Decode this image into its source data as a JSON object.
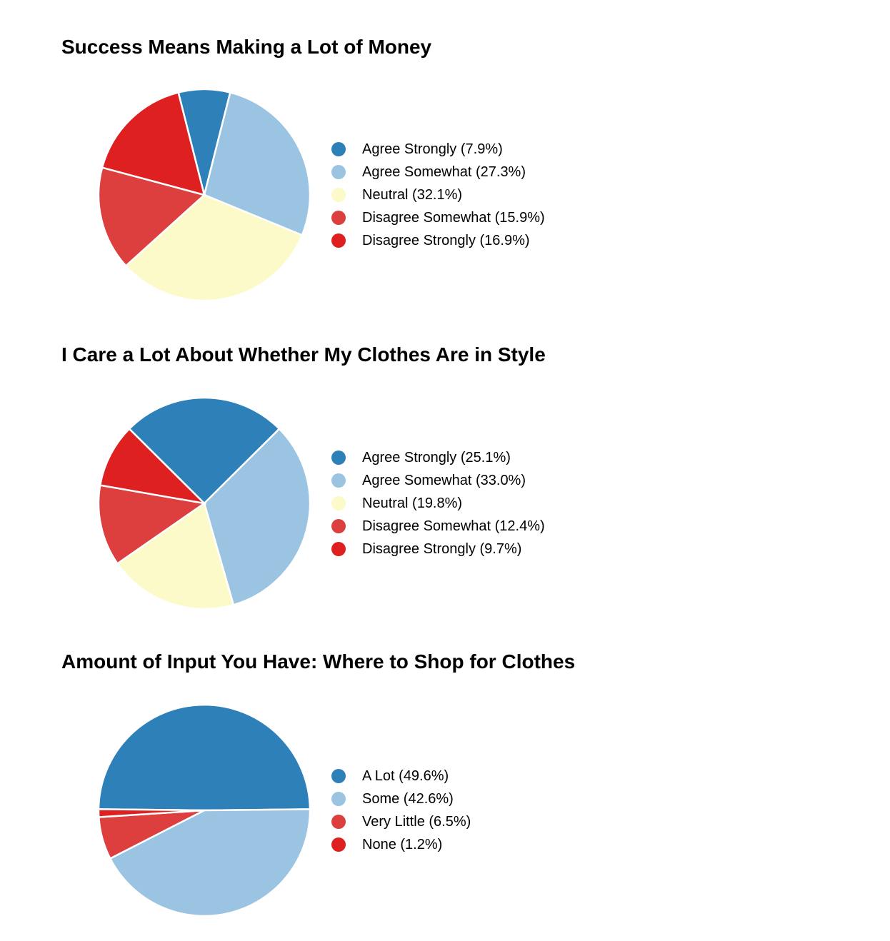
{
  "page": {
    "background": "#ffffff",
    "text_color": "#000000"
  },
  "palette": {
    "dark_blue": "#2E80B9",
    "light_blue": "#9BC4E2",
    "pale_yellow": "#FBFAC8",
    "medium_red": "#DD3E3E",
    "strong_red": "#DE2020",
    "slice_separator": "#ffffff"
  },
  "chart_data": [
    {
      "type": "pie",
      "title": "Success Means Making a Lot of Money",
      "labels": [
        "Agree Strongly",
        "Agree Somewhat",
        "Neutral",
        "Disagree Somewhat",
        "Disagree Strongly"
      ],
      "values": [
        7.9,
        27.3,
        32.1,
        15.9,
        16.9
      ],
      "unit": "%",
      "colors": [
        "#2E80B9",
        "#9BC4E2",
        "#FBFAC8",
        "#DD3E3E",
        "#DE2020"
      ],
      "legend_entries": [
        "Agree Strongly (7.9%)",
        "Agree Somewhat (27.3%)",
        "Neutral (32.1%)",
        "Disagree Somewhat (15.9%)",
        "Disagree Strongly (16.9%)"
      ],
      "legend_position": "right",
      "direction": "clockwise",
      "first_slice_centered_at": "top"
    },
    {
      "type": "pie",
      "title": "I Care a Lot About Whether My Clothes Are in Style",
      "labels": [
        "Agree Strongly",
        "Agree Somewhat",
        "Neutral",
        "Disagree Somewhat",
        "Disagree Strongly"
      ],
      "values": [
        25.1,
        33.0,
        19.8,
        12.4,
        9.7
      ],
      "unit": "%",
      "colors": [
        "#2E80B9",
        "#9BC4E2",
        "#FBFAC8",
        "#DD3E3E",
        "#DE2020"
      ],
      "legend_entries": [
        "Agree Strongly (25.1%)",
        "Agree Somewhat (33.0%)",
        "Neutral (19.8%)",
        "Disagree Somewhat (12.4%)",
        "Disagree Strongly (9.7%)"
      ],
      "legend_position": "right",
      "direction": "clockwise",
      "first_slice_centered_at": "top"
    },
    {
      "type": "pie",
      "title": "Amount of Input You Have: Where to Shop for Clothes",
      "labels": [
        "A Lot",
        "Some",
        "Very Little",
        "None"
      ],
      "values": [
        49.6,
        42.6,
        6.5,
        1.2
      ],
      "unit": "%",
      "colors": [
        "#2E80B9",
        "#9BC4E2",
        "#DD3E3E",
        "#DE2020"
      ],
      "legend_entries": [
        "A Lot (49.6%)",
        "Some (42.6%)",
        "Very Little (6.5%)",
        "None (1.2%)"
      ],
      "legend_position": "right",
      "direction": "clockwise",
      "first_slice_centered_at": "top"
    }
  ]
}
